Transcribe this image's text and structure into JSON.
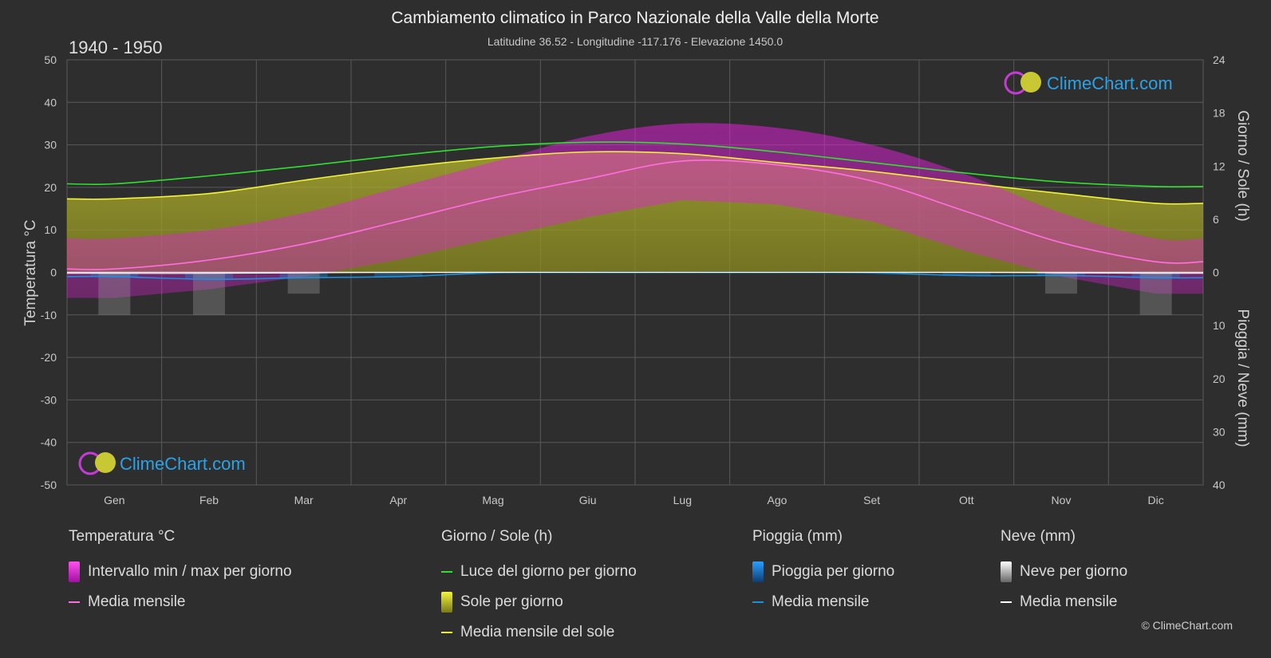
{
  "header": {
    "title": "Cambiamento climatico in Parco Nazionale della Valle della Morte",
    "subtitle": "Latitudine 36.52 - Longitudine -117.176 - Elevazione 1450.0",
    "period": "1940 - 1950"
  },
  "branding": {
    "logo_text": "ClimeChart.com",
    "copyright": "© ClimeChart.com"
  },
  "colors": {
    "background": "#2e2e2e",
    "grid": "#5a5a5a",
    "daylight": "#2fe02f",
    "sun_mean": "#f2f23a",
    "temp_mean": "#ff6fe0",
    "temp_range": "#e020d8",
    "sun_fill": "#a3a32a",
    "rain": "#1c8fe0",
    "snow": "#ffffff",
    "logo": "#2aa3e8"
  },
  "chart_data": {
    "type": "line",
    "months": [
      "Gen",
      "Feb",
      "Mar",
      "Apr",
      "Mag",
      "Giu",
      "Lug",
      "Ago",
      "Set",
      "Ott",
      "Nov",
      "Dic"
    ],
    "left_axis": {
      "label": "Temperatura °C",
      "ylim": [
        -50,
        50
      ],
      "ticks": [
        "50",
        "40",
        "30",
        "20",
        "10",
        "0",
        "-10",
        "-20",
        "-30",
        "-40",
        "-50"
      ]
    },
    "right_axis_top": {
      "label": "Giorno / Sole (h)",
      "ylim": [
        0,
        24
      ],
      "ticks": [
        "24",
        "18",
        "12",
        "6",
        "0"
      ]
    },
    "right_axis_bottom": {
      "label": "Pioggia / Neve (mm)",
      "ylim": [
        0,
        40
      ],
      "ticks": [
        "0",
        "10",
        "20",
        "30",
        "40"
      ]
    },
    "grid": true,
    "series": [
      {
        "name": "Luce del giorno per giorno",
        "axis": "hours",
        "values": [
          10.0,
          10.9,
          12.0,
          13.2,
          14.2,
          14.7,
          14.5,
          13.6,
          12.4,
          11.2,
          10.2,
          9.7
        ]
      },
      {
        "name": "Media mensile del sole",
        "axis": "hours",
        "values": [
          8.3,
          8.9,
          10.4,
          11.8,
          12.9,
          13.6,
          13.4,
          12.4,
          11.4,
          10.1,
          8.9,
          7.8
        ]
      },
      {
        "name": "Media mensile",
        "group": "Temperatura °C",
        "axis": "temperature",
        "values": [
          0.8,
          2.9,
          6.7,
          12.0,
          17.5,
          22.0,
          26.2,
          25.3,
          21.5,
          14.3,
          7.0,
          2.5
        ]
      },
      {
        "name": "Intervallo min / max per giorno",
        "axis": "temperature",
        "min": [
          -6,
          -4,
          -1,
          3,
          8,
          13,
          17,
          16,
          12,
          5,
          -1,
          -5
        ],
        "max": [
          8,
          10,
          14,
          20,
          26,
          32,
          35,
          34,
          30,
          23,
          14,
          8
        ]
      },
      {
        "name": "Media mensile",
        "group": "Pioggia (mm)",
        "axis": "precip",
        "values": [
          0.8,
          1.3,
          1.0,
          0.8,
          0.1,
          0.0,
          0.0,
          0.0,
          0.1,
          0.6,
          0.6,
          1.0
        ]
      },
      {
        "name": "Media mensile",
        "group": "Neve (mm)",
        "axis": "precip",
        "values": [
          0.2,
          0.2,
          0.1,
          0.0,
          0.0,
          0.0,
          0.0,
          0.0,
          0.0,
          0.0,
          0.1,
          0.2
        ]
      }
    ]
  },
  "legend": {
    "groups": [
      {
        "title": "Temperatura °C",
        "items": [
          {
            "label": "Intervallo min / max per giorno",
            "swatch": "box",
            "color": "#e020d8"
          },
          {
            "label": "Media mensile",
            "swatch": "line",
            "color": "#ff6fe0"
          }
        ]
      },
      {
        "title": "Giorno / Sole (h)",
        "items": [
          {
            "label": "Luce del giorno per giorno",
            "swatch": "line",
            "color": "#2fe02f"
          },
          {
            "label": "Sole per giorno",
            "swatch": "box",
            "color": "#d8d83a"
          },
          {
            "label": "Media mensile del sole",
            "swatch": "line",
            "color": "#f2f23a"
          }
        ]
      },
      {
        "title": "Pioggia (mm)",
        "items": [
          {
            "label": "Pioggia per giorno",
            "swatch": "box",
            "color": "#1c8fe0"
          },
          {
            "label": "Media mensile",
            "swatch": "line",
            "color": "#1c8fe0"
          }
        ]
      },
      {
        "title": "Neve (mm)",
        "items": [
          {
            "label": "Neve per giorno",
            "swatch": "box",
            "color": "#e8e8e8"
          },
          {
            "label": "Media mensile",
            "swatch": "line",
            "color": "#ffffff"
          }
        ]
      }
    ]
  }
}
